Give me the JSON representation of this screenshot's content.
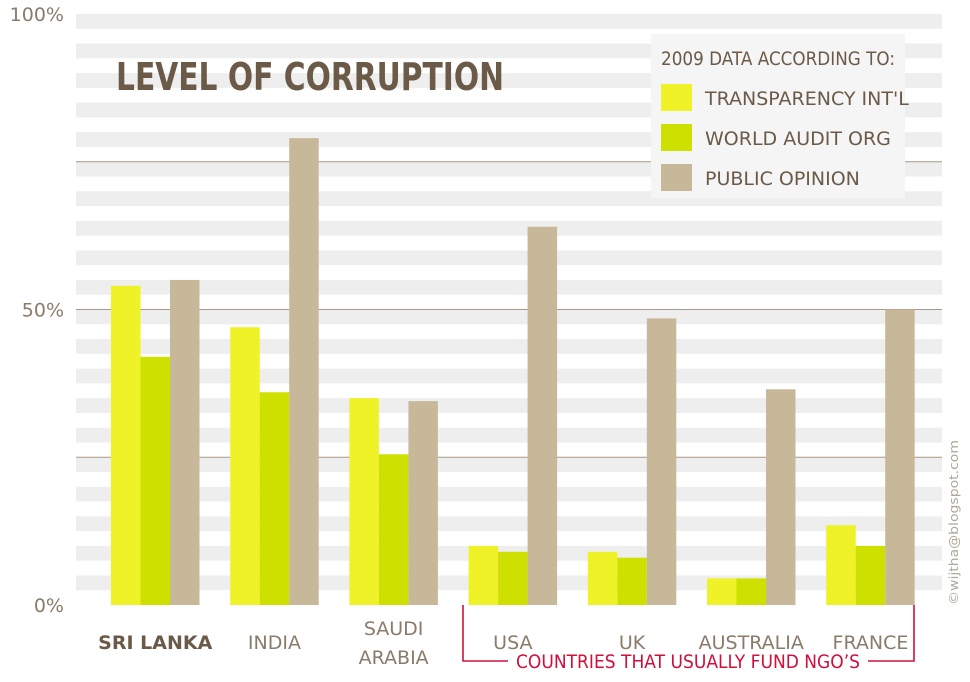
{
  "chart_data": {
    "type": "bar",
    "title": "LEVEL OF CORRUPTION",
    "categories": [
      "SRI LANKA",
      "INDIA",
      "SAUDI ARABIA",
      "USA",
      "UK",
      "AUSTRALIA",
      "FRANCE"
    ],
    "category_lines": [
      [
        "SRI LANKA"
      ],
      [
        "INDIA"
      ],
      [
        "SAUDI",
        "ARABIA"
      ],
      [
        "USA"
      ],
      [
        "UK"
      ],
      [
        "AUSTRALIA"
      ],
      [
        "FRANCE"
      ]
    ],
    "series": [
      {
        "name": "TRANSPARENCY INT'L",
        "color": "#eef226",
        "values": [
          54,
          47,
          35,
          10,
          9,
          4.5,
          13.5
        ]
      },
      {
        "name": "WORLD AUDIT ORG",
        "color": "#cde000",
        "values": [
          42,
          36,
          25.5,
          9,
          8,
          4.5,
          10
        ]
      },
      {
        "name": "PUBLIC OPINION",
        "color": "#c8b89a",
        "values": [
          55,
          79,
          34.5,
          64,
          48.5,
          36.5,
          50
        ]
      }
    ],
    "yticks": [
      "100%",
      "50%",
      "0%"
    ],
    "ylim": [
      0,
      100
    ],
    "legend": {
      "title": "2009 DATA ACCORDING TO:",
      "placement": "top-right"
    },
    "annotation": "COUNTRIES THAT USUALLY FUND NGO’S",
    "credit": "©wijtha@blogspot.com",
    "colors": {
      "title": "#6b5a48",
      "axis_text": "#8a7b6a",
      "annotation": "#d0103a",
      "stripe": "#eeeeee",
      "gridline": "#a8998a"
    }
  }
}
